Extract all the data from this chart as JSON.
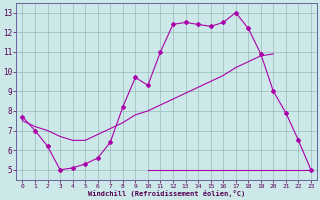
{
  "xlabel": "Windchill (Refroidissement éolien,°C)",
  "background_color": "#cce8e8",
  "grid_color": "#99bbbb",
  "line_color": "#aa00aa",
  "xlim": [
    -0.5,
    23.5
  ],
  "ylim": [
    4.5,
    13.5
  ],
  "xticks": [
    0,
    1,
    2,
    3,
    4,
    5,
    6,
    7,
    8,
    9,
    10,
    11,
    12,
    13,
    14,
    15,
    16,
    17,
    18,
    19,
    20,
    21,
    22,
    23
  ],
  "yticks": [
    5,
    6,
    7,
    8,
    9,
    10,
    11,
    12,
    13
  ],
  "line1_x": [
    0,
    1,
    2,
    3,
    4,
    5,
    6,
    7,
    8,
    9,
    10,
    11,
    12,
    13,
    14,
    15,
    16,
    17,
    18,
    19,
    20,
    21,
    22,
    23
  ],
  "line1_y": [
    7.7,
    7.0,
    6.2,
    5.0,
    5.1,
    5.3,
    5.6,
    6.4,
    8.2,
    9.7,
    9.3,
    11.0,
    12.4,
    12.5,
    12.4,
    12.3,
    12.5,
    13.0,
    12.2,
    10.9,
    9.0,
    7.9,
    6.5,
    5.0
  ],
  "line2_x": [
    0,
    1,
    2,
    3,
    4,
    5,
    6,
    7,
    8,
    9,
    10,
    11,
    12,
    13,
    14,
    15,
    16,
    17,
    18,
    19,
    20
  ],
  "line2_y": [
    7.5,
    7.2,
    7.0,
    6.7,
    6.5,
    6.5,
    6.8,
    7.1,
    7.4,
    7.8,
    8.0,
    8.3,
    8.6,
    8.9,
    9.2,
    9.5,
    9.8,
    10.2,
    10.5,
    10.8,
    10.9
  ],
  "line3_x": [
    10,
    23
  ],
  "line3_y": [
    5.0,
    5.0
  ]
}
